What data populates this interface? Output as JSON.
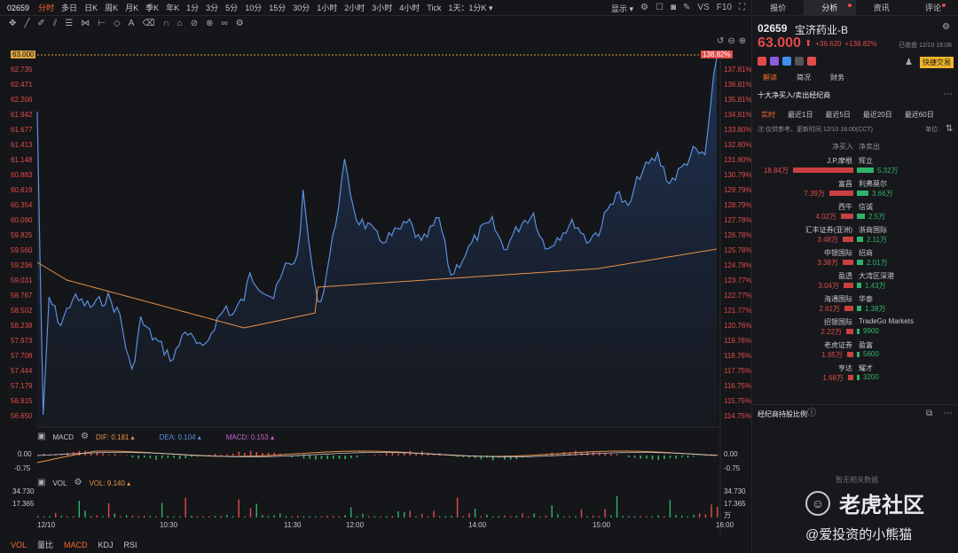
{
  "topbar": {
    "symbol": "02659",
    "timeframes": [
      "分时",
      "多日",
      "日K",
      "周K",
      "月K",
      "季K",
      "年K",
      "1分",
      "3分",
      "5分",
      "10分",
      "15分",
      "30分",
      "1小时",
      "2小时",
      "3小时",
      "4小时",
      "Tick",
      "1天：1分K ▾"
    ],
    "active_timeframe": "分时",
    "display_label": "显示 ▾",
    "vs_label": "VS",
    "f10_label": "F10"
  },
  "chart": {
    "price_ticks": [
      "63.000",
      "62.735",
      "62.471",
      "62.206",
      "61.942",
      "61.677",
      "61.413",
      "61.148",
      "60.883",
      "60.619",
      "60.354",
      "60.090",
      "59.825",
      "59.560",
      "59.296",
      "59.031",
      "58.767",
      "58.502",
      "58.238",
      "57.973",
      "57.708",
      "57.444",
      "57.179",
      "56.915",
      "56.650"
    ],
    "pct_ticks": [
      "138.82%",
      "137.81%",
      "136.81%",
      "135.81%",
      "134.81%",
      "133.80%",
      "132.80%",
      "131.80%",
      "130.79%",
      "129.79%",
      "128.79%",
      "127.78%",
      "126.78%",
      "125.78%",
      "124.78%",
      "123.77%",
      "122.77%",
      "121.77%",
      "120.76%",
      "119.76%",
      "118.76%",
      "117.75%",
      "116.75%",
      "115.75%",
      "114.75%"
    ],
    "time_ticks": [
      "12/10",
      "10:30",
      "11:30",
      "12:00",
      "14:00",
      "15:00",
      "16:00"
    ]
  },
  "macd": {
    "title": "MACD",
    "dif_label": "DIF: 0.181 ▴",
    "dea_label": "DEA: 0.104 ▴",
    "macd_label": "MACD: 0.153 ▴",
    "ticks_left": [
      "0.00",
      "-0.75"
    ],
    "ticks_right": [
      "0.00",
      "-0.75"
    ]
  },
  "vol": {
    "title": "VOL",
    "vol_label": "VOL: 9.140 ▴",
    "ticks_left": [
      "34.730",
      "17.365"
    ],
    "ticks_right": [
      "34.730",
      "17.365",
      "万"
    ]
  },
  "bottom_tabs": [
    "VOL",
    "量比",
    "MACD",
    "KDJ",
    "RSI"
  ],
  "side": {
    "tabs": [
      "报价",
      "分析",
      "资讯",
      "评论"
    ],
    "code": "02659",
    "name": "宝济药业-B",
    "price": "63.000",
    "arrow": "⬆",
    "change": "+36.620",
    "change_pct": "+138.82%",
    "closed_label": "已收盘 12/10 16:08",
    "quick_trade": "快捷交易",
    "sub_tabs": [
      "解读",
      "简况",
      "财务"
    ],
    "section_title": "十大净买入/卖出经纪商",
    "period_tabs": [
      "实时",
      "最近1日",
      "最近5日",
      "最近20日",
      "最近60日"
    ],
    "note": "注:仅供参考。更新时间 12/10 16:00(CCT)",
    "unit": "单位:",
    "col_buy": "净买入",
    "col_sell": "净卖出",
    "brokers": [
      {
        "buy_name": "J.P.摩根",
        "buy_val": "18.84万",
        "sell_name": "辉立",
        "sell_val": "5.32万",
        "buy_frac": 1.0,
        "sell_frac": 0.28
      },
      {
        "buy_name": "富昌",
        "buy_val": "7.39万",
        "sell_name": "利弗莫尔",
        "sell_val": "3.66万",
        "buy_frac": 0.39,
        "sell_frac": 0.19
      },
      {
        "buy_name": "西牛",
        "buy_val": "4.02万",
        "sell_name": "信诚",
        "sell_val": "2.5万",
        "buy_frac": 0.21,
        "sell_frac": 0.13
      },
      {
        "buy_name": "汇丰证券(亚洲)",
        "buy_val": "3.48万",
        "sell_name": "浙商国际",
        "sell_val": "2.11万",
        "buy_frac": 0.18,
        "sell_frac": 0.11
      },
      {
        "buy_name": "中银国际",
        "buy_val": "3.38万",
        "sell_name": "招商",
        "sell_val": "2.01万",
        "buy_frac": 0.18,
        "sell_frac": 0.11
      },
      {
        "buy_name": "盈透",
        "buy_val": "3.04万",
        "sell_name": "大湾区深港",
        "sell_val": "1.43万",
        "buy_frac": 0.16,
        "sell_frac": 0.08
      },
      {
        "buy_name": "海通国际",
        "buy_val": "2.61万",
        "sell_name": "华泰",
        "sell_val": "1.38万",
        "buy_frac": 0.14,
        "sell_frac": 0.07
      },
      {
        "buy_name": "招银国际",
        "buy_val": "2.22万",
        "sell_name": "TradeGo Markets",
        "sell_val": "9900",
        "buy_frac": 0.12,
        "sell_frac": 0.05
      },
      {
        "buy_name": "老虎证券",
        "buy_val": "1.95万",
        "sell_name": "盈富",
        "sell_val": "5600",
        "buy_frac": 0.1,
        "sell_frac": 0.03
      },
      {
        "buy_name": "亨达",
        "buy_val": "1.68万",
        "sell_name": "耀才",
        "sell_val": "3200",
        "buy_frac": 0.09,
        "sell_frac": 0.02
      }
    ],
    "holding_title": "经纪商持股比例",
    "no_data": "暂无相关数据",
    "watermark_brand": "老虎社区",
    "watermark_user": "@爱投资的小熊猫"
  }
}
